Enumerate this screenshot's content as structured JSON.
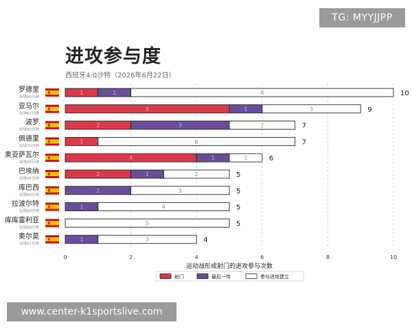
{
  "watermarks": {
    "top_right": "TG: MYYJJPP",
    "bottom_left": "www.center-k1sportslive.com"
  },
  "chart_data": {
    "type": "bar",
    "orientation": "horizontal",
    "stacked": true,
    "title": "进攻参与度",
    "subtitle": "西班牙4:0沙特（2026年6月22日）",
    "xlabel": "运动战形成射门的进攻参与次数",
    "ylabel": "",
    "xlim": [
      0,
      10
    ],
    "xticks": [
      0,
      2,
      4,
      6,
      8,
      10
    ],
    "grid": "vertical dashed",
    "legend_position": "bottom",
    "flag": "spain-flag-icon",
    "colors": {
      "射门": "#d9394a",
      "最后一传": "#6a4e9c",
      "参与进攻建立": "#ffffff",
      "outline": "#222222"
    },
    "players": [
      {
        "name": "罗德里",
        "minutes": "出场90分钟"
      },
      {
        "name": "亚马尔",
        "minutes": "出场61分钟"
      },
      {
        "name": "波罗",
        "minutes": "出场90分钟"
      },
      {
        "name": "佩德里",
        "minutes": "出场70分钟"
      },
      {
        "name": "奥亚萨瓦尔",
        "minutes": "出场45分钟"
      },
      {
        "name": "巴埃纳",
        "minutes": "出场45分钟"
      },
      {
        "name": "库巴西",
        "minutes": "出场90分钟"
      },
      {
        "name": "拉波尔特",
        "minutes": "出场90分钟"
      },
      {
        "name": "库库雷利亚",
        "minutes": "出场90分钟"
      },
      {
        "name": "奥尔莫",
        "minutes": "出场61分钟"
      }
    ],
    "series": [
      {
        "name": "射门",
        "values": [
          1,
          5,
          2,
          1,
          4,
          2,
          0,
          0,
          0,
          0
        ]
      },
      {
        "name": "最后一传",
        "values": [
          1,
          1,
          3,
          0,
          1,
          1,
          2,
          1,
          0,
          1
        ]
      },
      {
        "name": "参与进攻建立",
        "values": [
          8,
          3,
          2,
          6,
          1,
          2,
          3,
          4,
          5,
          3
        ]
      }
    ],
    "totals": [
      10,
      9,
      7,
      7,
      6,
      5,
      5,
      5,
      5,
      4
    ]
  }
}
